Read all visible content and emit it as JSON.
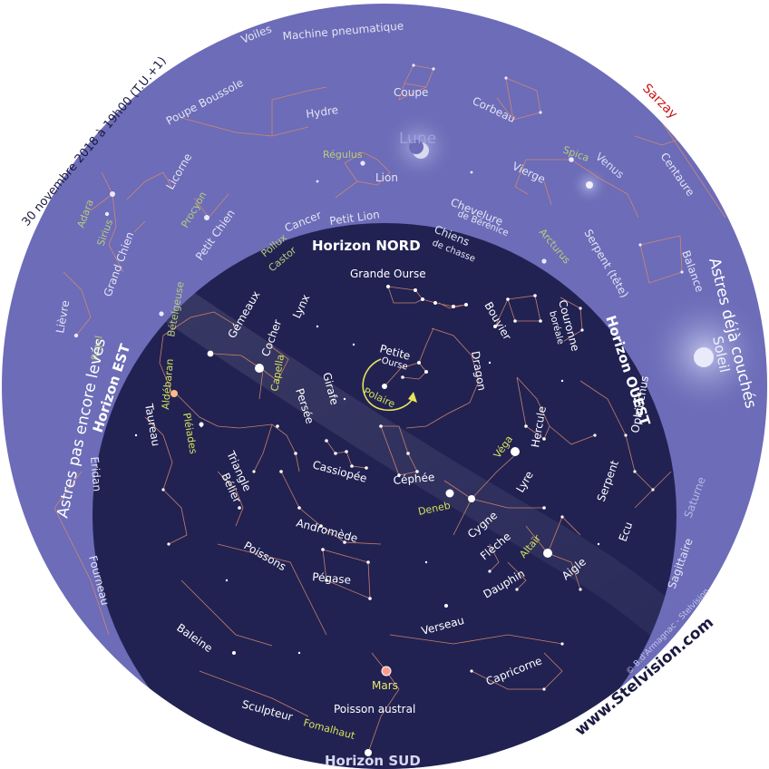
{
  "header": {
    "date_line": "30 novembre 2018 à 19h00  (T.U.+1)",
    "place": "Sarzay",
    "website": "www.Stelvision.com",
    "copyright": "©  B.d'Armagnac - Stelvision"
  },
  "horizons": {
    "north": "Horizon NORD",
    "south": "Horizon SUD",
    "east": "Horizon EST",
    "west": "Horizon OUEST"
  },
  "side_notes": {
    "left": "Astres pas encore levés",
    "right": "Astres déjà couchés"
  },
  "constellations_day": {
    "voiles": "Voiles",
    "machine": "Machine pneumatique",
    "poupe": "Poupe Boussole",
    "coupe": "Coupe",
    "corbeau": "Corbeau",
    "hydre": "Hydre",
    "licorne": "Licorne",
    "lion": "Lion",
    "vierge": "Vierge",
    "centaure": "Centaure",
    "grand_chien": "Grand Chien",
    "petit_chien": "Petit Chien",
    "cancer": "Cancer",
    "petit_lion": "Petit Lion",
    "chevelure": "Chevelure",
    "berenice": "de Bérénice",
    "chiens": "Chiens",
    "chasse": "de chasse",
    "balance": "Balance",
    "serpent_tete": "Serpent (tête)",
    "lievre": "Lièvre",
    "eridan": "Eridan",
    "fourneau": "Fourneau",
    "sagittaire": "Sagittaire"
  },
  "constellations_night": {
    "gemeaux": "Gémeaux",
    "lynx": "Lynx",
    "grande_ourse": "Grande Ourse",
    "cocher": "Cocher",
    "petite": "Petite",
    "ourse": "Ourse",
    "bouvier": "Bouvier",
    "couronne": "Couronne",
    "boreale": "boréale",
    "dragon": "Dragon",
    "girafe": "Girafe",
    "persee": "Persée",
    "taureau": "Taureau",
    "hercule": "Hercule",
    "ophiuchus": "Ophiuchus",
    "cassiopee": "Cassiopée",
    "cephee": "Céphée",
    "triangle": "Triangle",
    "belier": "Bélier",
    "lyre": "Lyre",
    "serpent": "Serpent",
    "andromede": "Andromède",
    "cygne": "Cygne",
    "ecu": "Ecu",
    "poissons": "Poissons",
    "fleche": "Flèche",
    "pegase": "Pégase",
    "dauphin": "Dauphin",
    "aigle": "Aigle",
    "baleine": "Baleine",
    "verseau": "Verseau",
    "capricorne": "Capricorne",
    "poisson_austral": "Poisson austral",
    "sculpteur": "Sculpteur"
  },
  "stars": {
    "regulus": "Régulus",
    "spica": "Spica",
    "adara": "Adara",
    "sirius": "Sirius",
    "procyon": "Procyon",
    "pollux": "Pollux",
    "castor": "Castor",
    "betelgeuse": "Bételgeuse",
    "arcturus": "Arcturus",
    "rigel": "Rigel",
    "aldebaran": "Aldébaran",
    "capella": "Capella",
    "polaire": "Polaire",
    "pleiades": "Pléiades",
    "vega": "Véga",
    "deneb": "Deneb",
    "altair": "Altaïr",
    "fomalhaut": "Fomalhaut"
  },
  "planets": {
    "lune": "Lune",
    "venus": "Venus",
    "soleil": "Soleil",
    "mars": "Mars",
    "saturne": "Saturne"
  },
  "colors": {
    "day_sky": "#6c6cb8",
    "night_sky": "#212252",
    "constellation_lines": "#d98a6a",
    "star_names": "#d7e25a",
    "place": "#cc1010"
  }
}
